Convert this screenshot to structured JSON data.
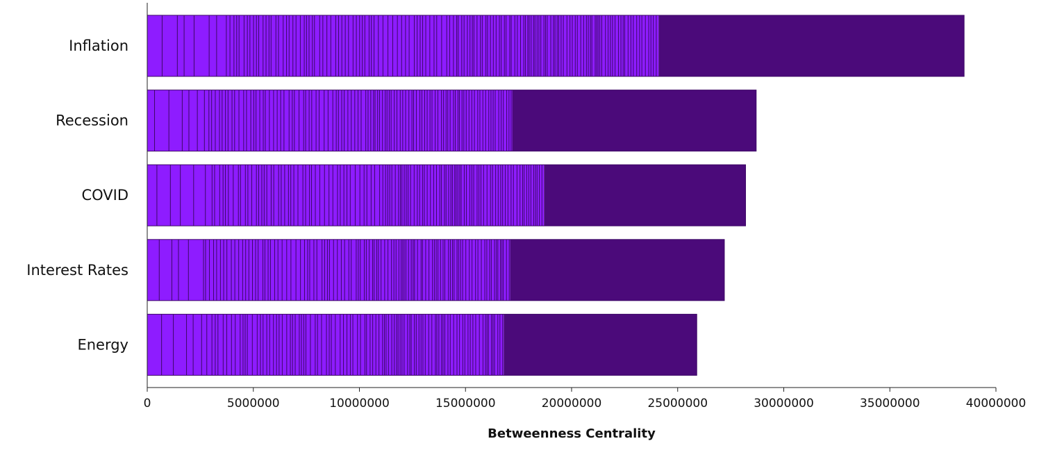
{
  "chart_data": {
    "type": "bar",
    "orientation": "horizontal",
    "title": "",
    "xlabel": "Betweenness Centrality",
    "ylabel": "",
    "categories": [
      "Inflation",
      "Recession",
      "COVID",
      "Interest Rates",
      "Energy"
    ],
    "values": [
      38500000,
      28700000,
      28200000,
      27200000,
      25900000
    ],
    "stacked_segments_last_boundary": [
      24100000,
      17200000,
      18700000,
      17100000,
      16800000
    ],
    "xlim": [
      0,
      40000000
    ],
    "xticks": [
      0,
      5000000,
      10000000,
      15000000,
      20000000,
      25000000,
      30000000,
      35000000,
      40000000
    ],
    "xtick_labels": [
      "0",
      "5000000",
      "10000000",
      "15000000",
      "20000000",
      "25000000",
      "30000000",
      "35000000",
      "40000000"
    ],
    "grid": false,
    "legend": "none",
    "colors": {
      "light": "#8e1cff",
      "dark": "#4b0a7a",
      "segment_edge": "#3d0866"
    }
  }
}
